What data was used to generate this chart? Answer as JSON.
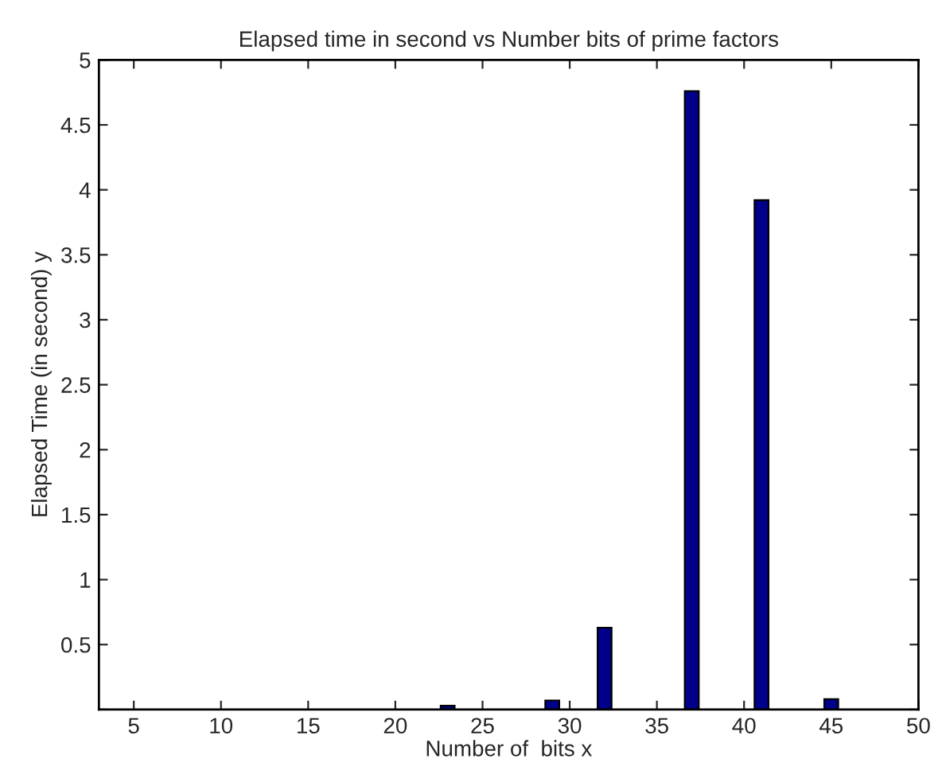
{
  "chart_data": {
    "type": "bar",
    "title": "Elapsed time in second vs Number bits of prime factors",
    "xlabel": "Number of  bits x",
    "ylabel": "Elapsed Time (in second) y",
    "x": [
      23,
      29,
      32,
      37,
      41,
      45
    ],
    "values": [
      0.03,
      0.07,
      0.63,
      4.76,
      3.92,
      0.08
    ],
    "color": "#00008b",
    "xlim": [
      3,
      50
    ],
    "xticks": [
      5,
      10,
      15,
      20,
      25,
      30,
      35,
      40,
      45,
      50
    ],
    "ylim": [
      0,
      5
    ],
    "yticks": [
      {
        "value": 0,
        "label": null
      },
      0.5,
      1,
      1.5,
      2,
      2.5,
      3,
      3.5,
      4,
      4.5,
      5
    ],
    "grid": false,
    "legend": false
  }
}
